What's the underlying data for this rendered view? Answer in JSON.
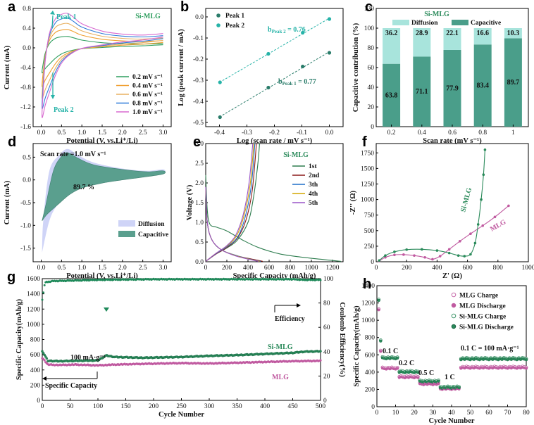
{
  "colors": {
    "v02": "#2e9e5e",
    "v04": "#f0a032",
    "v06": "#e8b060",
    "v08": "#2f7bd9",
    "v10": "#d86ad0",
    "peak": "#26b3a8",
    "teal": "#4a9e8a",
    "tealLight": "#a8e4dc",
    "diff": "#cfd4f7",
    "c1st": "#2e7d4f",
    "c2nd": "#8b1a1a",
    "c3th": "#1f6fc9",
    "c4th": "#d4a500",
    "c5th": "#9a55c9",
    "sim": "#2a8a5a",
    "mlg": "#c05aa0",
    "eff": "#1f8a5a"
  },
  "chart_data": [
    {
      "panel": "a",
      "type": "line",
      "title": "Si-MLG",
      "xlabel": "Potential (V, vs.Li⁺/Li)",
      "ylabel": "Current (mA)",
      "xlim": [
        -0.2,
        3.2
      ],
      "ylim": [
        -1.6,
        0.8
      ],
      "xticks": [
        0.0,
        0.5,
        1.0,
        1.5,
        2.0,
        2.5,
        3.0
      ],
      "yticks": [
        -1.6,
        -1.2,
        -0.8,
        -0.4,
        0.0,
        0.4,
        0.8
      ],
      "annotations": [
        "Peak 1",
        "Peak 2"
      ],
      "series": [
        {
          "name": "0.2 mV s⁻¹",
          "scale": 0.35,
          "color": "v02"
        },
        {
          "name": "0.4 mV s⁻¹",
          "scale": 0.55,
          "color": "v04"
        },
        {
          "name": "0.6 mV s⁻¹",
          "scale": 0.72,
          "color": "v06"
        },
        {
          "name": "0.8 mV s⁻¹",
          "scale": 0.87,
          "color": "v08"
        },
        {
          "name": "1.0 mV s⁻¹",
          "scale": 1.0,
          "color": "v10"
        }
      ],
      "cathodic_sweep": [
        [
          3.0,
          0.18
        ],
        [
          2.5,
          0.12
        ],
        [
          2.0,
          0.08
        ],
        [
          1.5,
          0.02
        ],
        [
          1.0,
          -0.05
        ],
        [
          0.7,
          -0.18
        ],
        [
          0.5,
          -0.35
        ],
        [
          0.35,
          -0.6
        ],
        [
          0.2,
          -0.95
        ],
        [
          0.1,
          -1.2
        ],
        [
          0.02,
          -1.45
        ]
      ],
      "anodic_sweep": [
        [
          0.02,
          -1.45
        ],
        [
          0.05,
          -0.9
        ],
        [
          0.1,
          -0.3
        ],
        [
          0.2,
          0.25
        ],
        [
          0.35,
          0.55
        ],
        [
          0.5,
          0.64
        ],
        [
          0.65,
          0.66
        ],
        [
          0.8,
          0.58
        ],
        [
          1.0,
          0.45
        ],
        [
          1.5,
          0.3
        ],
        [
          2.0,
          0.24
        ],
        [
          2.5,
          0.22
        ],
        [
          3.0,
          0.25
        ]
      ]
    },
    {
      "panel": "b",
      "type": "scatter",
      "xlabel": "Log (scan rate / mV s⁻¹)",
      "ylabel": "Log (peak current / mA)",
      "xlim": [
        -0.45,
        0.05
      ],
      "ylim": [
        -0.52,
        0.04
      ],
      "xticks": [
        -0.4,
        -0.3,
        -0.2,
        -0.1,
        0.0
      ],
      "yticks": [
        0.0,
        -0.1,
        -0.2,
        -0.3,
        -0.4,
        -0.5
      ],
      "series": [
        {
          "name": "Peak 1",
          "x": [
            -0.398,
            -0.222,
            -0.097,
            0.0
          ],
          "y": [
            -0.475,
            -0.335,
            -0.235,
            -0.17
          ],
          "fit_label": "b",
          "fit_sub": "Peak 1",
          "fit_value": "= 0.77"
        },
        {
          "name": "Peak 2",
          "x": [
            -0.398,
            -0.222,
            -0.097,
            0.0
          ],
          "y": [
            -0.31,
            -0.175,
            -0.075,
            -0.01
          ],
          "fit_label": "b",
          "fit_sub": "Peak 2",
          "fit_value": "= 0.76"
        }
      ]
    },
    {
      "panel": "c",
      "type": "bar",
      "title": "Si-MLG",
      "xlabel": "Scan rate (mV s⁻¹)",
      "ylabel": "Capacitive contribution (%)",
      "ylim": [
        0,
        120
      ],
      "yticks": [
        0,
        20,
        40,
        60,
        80,
        100,
        120
      ],
      "categories": [
        "0.2",
        "0.4",
        "0.6",
        "0.8",
        "1"
      ],
      "series": [
        {
          "name": "Capacitive",
          "values": [
            63.8,
            71.1,
            77.9,
            83.4,
            89.7
          ]
        },
        {
          "name": "Diffusion",
          "values": [
            36.2,
            28.9,
            22.1,
            16.6,
            10.3
          ]
        }
      ],
      "value_labels_cap": [
        "63.8",
        "71.1",
        "77.9",
        "83.4",
        "89.7"
      ],
      "value_labels_diff": [
        "36.2",
        "28.9",
        "22.1",
        "16.6",
        "10.3"
      ]
    },
    {
      "panel": "d",
      "type": "area",
      "title": "Scan rate =1.0 mV s⁻¹",
      "annotation": "89.7 %",
      "xlabel": "Potential (V, vs.Li⁺/Li)",
      "ylabel": "Current (mA)",
      "xlim": [
        -0.2,
        3.2
      ],
      "ylim": [
        -1.8,
        0.8
      ],
      "xticks": [
        0.0,
        0.5,
        1.0,
        1.5,
        2.0,
        2.5,
        3.0
      ],
      "yticks": [
        -1.5,
        -1.0,
        -0.5,
        0.0,
        0.5
      ],
      "series": [
        {
          "name": "Diffusion"
        },
        {
          "name": "Capacitive"
        }
      ]
    },
    {
      "panel": "e",
      "type": "line",
      "title": "Si-MLG",
      "xlabel": "Specific Capacity (mAh/g)",
      "ylabel": "Voltage (V)",
      "xlim": [
        0,
        1300
      ],
      "ylim": [
        0,
        3.0
      ],
      "xticks": [
        0,
        200,
        400,
        600,
        800,
        1000,
        1200
      ],
      "yticks": [
        0.0,
        0.5,
        1.0,
        1.5,
        2.0,
        2.5,
        3.0
      ],
      "series": [
        {
          "name": "1st",
          "color": "c1st",
          "discharge": [
            [
              0,
              2.2
            ],
            [
              15,
              1.3
            ],
            [
              40,
              0.95
            ],
            [
              100,
              0.88
            ],
            [
              200,
              0.78
            ],
            [
              350,
              0.55
            ],
            [
              500,
              0.36
            ],
            [
              700,
              0.2
            ],
            [
              900,
              0.12
            ],
            [
              1100,
              0.06
            ],
            [
              1280,
              0.01
            ]
          ],
          "charge": [
            [
              0,
              0.01
            ],
            [
              100,
              0.2
            ],
            [
              200,
              0.35
            ],
            [
              300,
              0.55
            ],
            [
              400,
              1.0
            ],
            [
              450,
              1.6
            ],
            [
              490,
              2.4
            ],
            [
              510,
              3.0
            ]
          ]
        },
        {
          "name": "2nd",
          "color": "c2nd",
          "discharge": [
            [
              0,
              1.9
            ],
            [
              15,
              1.0
            ],
            [
              60,
              0.55
            ],
            [
              150,
              0.3
            ],
            [
              300,
              0.15
            ],
            [
              450,
              0.06
            ],
            [
              540,
              0.01
            ]
          ],
          "charge": [
            [
              0,
              0.01
            ],
            [
              100,
              0.2
            ],
            [
              200,
              0.36
            ],
            [
              300,
              0.6
            ],
            [
              380,
              1.05
            ],
            [
              440,
              1.8
            ],
            [
              480,
              3.0
            ]
          ]
        },
        {
          "name": "3th",
          "color": "c3th",
          "discharge": [
            [
              0,
              1.9
            ],
            [
              15,
              1.0
            ],
            [
              60,
              0.55
            ],
            [
              150,
              0.3
            ],
            [
              300,
              0.15
            ],
            [
              430,
              0.06
            ],
            [
              520,
              0.01
            ]
          ],
          "charge": [
            [
              0,
              0.01
            ],
            [
              100,
              0.21
            ],
            [
              200,
              0.38
            ],
            [
              300,
              0.62
            ],
            [
              370,
              1.1
            ],
            [
              430,
              1.9
            ],
            [
              465,
              3.0
            ]
          ]
        },
        {
          "name": "4th",
          "color": "c4th",
          "discharge": [
            [
              0,
              1.9
            ],
            [
              15,
              1.0
            ],
            [
              60,
              0.55
            ],
            [
              150,
              0.3
            ],
            [
              290,
              0.15
            ],
            [
              420,
              0.06
            ],
            [
              510,
              0.01
            ]
          ],
          "charge": [
            [
              0,
              0.01
            ],
            [
              100,
              0.22
            ],
            [
              200,
              0.4
            ],
            [
              290,
              0.65
            ],
            [
              360,
              1.15
            ],
            [
              420,
              1.95
            ],
            [
              455,
              3.0
            ]
          ]
        },
        {
          "name": "5th",
          "color": "c5th",
          "discharge": [
            [
              0,
              1.9
            ],
            [
              15,
              1.0
            ],
            [
              60,
              0.55
            ],
            [
              150,
              0.3
            ],
            [
              280,
              0.15
            ],
            [
              410,
              0.06
            ],
            [
              500,
              0.01
            ]
          ],
          "charge": [
            [
              0,
              0.01
            ],
            [
              100,
              0.22
            ],
            [
              200,
              0.41
            ],
            [
              285,
              0.68
            ],
            [
              355,
              1.2
            ],
            [
              410,
              2.0
            ],
            [
              445,
              3.0
            ]
          ]
        }
      ]
    },
    {
      "panel": "f",
      "type": "line",
      "xlabel": "Z' (Ω)",
      "ylabel": "-Z'' (Ω)",
      "xlim": [
        0,
        1000
      ],
      "ylim": [
        0,
        1900
      ],
      "xticks": [
        0,
        200,
        400,
        600,
        800,
        1000
      ],
      "yticks": [
        0,
        250,
        500,
        750,
        1000,
        1250,
        1500,
        1750
      ],
      "series": [
        {
          "name": "Si-MLG",
          "x": [
            20,
            60,
            120,
            200,
            300,
            400,
            480,
            540,
            580,
            620,
            650,
            670,
            690,
            705,
            715
          ],
          "y": [
            20,
            100,
            160,
            195,
            200,
            180,
            140,
            100,
            90,
            120,
            300,
            600,
            1000,
            1400,
            1800
          ]
        },
        {
          "name": "MLG",
          "x": [
            20,
            60,
            120,
            180,
            250,
            320,
            370,
            420,
            480,
            550,
            620,
            700,
            780,
            870
          ],
          "y": [
            10,
            70,
            110,
            115,
            100,
            70,
            40,
            90,
            200,
            330,
            450,
            580,
            720,
            900
          ]
        }
      ]
    },
    {
      "panel": "g",
      "type": "line",
      "xlabel": "Cycle Number",
      "ylabel": "Specific Capacity(mAh/g)",
      "y2label": "Coulomb Efficiency(%)",
      "xlim": [
        0,
        500
      ],
      "ylim": [
        0,
        1600
      ],
      "y2lim": [
        0,
        100
      ],
      "xticks": [
        0,
        50,
        100,
        150,
        200,
        250,
        300,
        350,
        400,
        450,
        500
      ],
      "yticks": [
        0,
        200,
        400,
        600,
        800,
        1000,
        1200,
        1400,
        1600
      ],
      "y2ticks": [
        0,
        20,
        40,
        60,
        80,
        100
      ],
      "annotations": [
        "Efficiency",
        "100 mA·g⁻¹",
        "Specific Capacity",
        "Si-MLG",
        "MLG"
      ],
      "series": [
        {
          "name": "Si-MLG",
          "x": [
            0,
            10,
            30,
            60,
            100,
            115,
            130,
            180,
            250,
            300,
            350,
            400,
            450,
            470,
            500
          ],
          "y": [
            650,
            520,
            515,
            520,
            525,
            590,
            570,
            560,
            570,
            585,
            595,
            610,
            625,
            640,
            645
          ]
        },
        {
          "name": "MLG",
          "x": [
            0,
            10,
            30,
            60,
            100,
            130,
            180,
            250,
            300,
            350,
            400,
            450,
            500
          ],
          "y": [
            560,
            470,
            465,
            470,
            460,
            470,
            480,
            490,
            485,
            495,
            505,
            515,
            520
          ]
        },
        {
          "name": "Efficiency",
          "x": [
            0,
            5,
            20,
            100,
            200,
            300,
            400,
            450,
            470,
            500
          ],
          "y": [
            83,
            97,
            98,
            99,
            99.5,
            99.5,
            99.5,
            99.5,
            99,
            99
          ]
        }
      ]
    },
    {
      "panel": "h",
      "type": "scatter",
      "xlabel": "Cycle Number",
      "ylabel": "Specific Capacity(mAh/g)",
      "xlim": [
        0,
        80
      ],
      "ylim": [
        0,
        1400
      ],
      "xticks": [
        0,
        10,
        20,
        30,
        40,
        50,
        60,
        70,
        80
      ],
      "yticks": [
        0,
        200,
        400,
        600,
        800,
        1000,
        1200,
        1400
      ],
      "annotations": [
        "0.1 C",
        "0.2 C",
        "0.5 C",
        "1 C",
        "0.1 C = 100 mA·g⁻¹"
      ],
      "series": [
        {
          "name": "MLG Charge"
        },
        {
          "name": "MLG Discharge"
        },
        {
          "name": "Si-MLG  Charge"
        },
        {
          "name": "Si-MLG Discharge"
        }
      ],
      "segments": [
        {
          "from": 1,
          "to": 11,
          "sim": 560,
          "mlg": 440
        },
        {
          "from": 12,
          "to": 22,
          "sim": 400,
          "mlg": 340
        },
        {
          "from": 23,
          "to": 33,
          "sim": 290,
          "mlg": 260
        },
        {
          "from": 34,
          "to": 44,
          "sim": 220,
          "mlg": 205
        },
        {
          "from": 45,
          "to": 80,
          "sim": 550,
          "mlg": 450
        }
      ]
    }
  ],
  "panels": {
    "a": {
      "label": "a",
      "title": "Si-MLG",
      "peak1": "Peak 1",
      "peak2": "Peak 2"
    },
    "b": {
      "label": "b",
      "leg1": "Peak 1",
      "leg2": "Peak 2"
    },
    "c": {
      "label": "c",
      "title": "Si-MLG",
      "leg_diff": "Diffusion",
      "leg_cap": "Capacitive"
    },
    "d": {
      "label": "d",
      "title": "Scan rate =1.0 mV s⁻¹",
      "pct": "89.7 %",
      "leg_diff": "Diffusion",
      "leg_cap": "Capacitive"
    },
    "e": {
      "label": "e",
      "title": "Si-MLG"
    },
    "f": {
      "label": "f",
      "sim": "Si-MLG",
      "mlg": "MLG"
    },
    "g": {
      "label": "g",
      "eff": "Efficiency",
      "rate": "100 mA·g⁻¹",
      "cap": "Specific Capacity",
      "sim": "Si-MLG",
      "mlg": "MLG"
    },
    "h": {
      "label": "h",
      "r1": "0.1 C",
      "r2": "0.2 C",
      "r3": "0.5 C",
      "r4": "1 C",
      "r5": "0.1 C = 100 mA·g⁻¹"
    }
  }
}
